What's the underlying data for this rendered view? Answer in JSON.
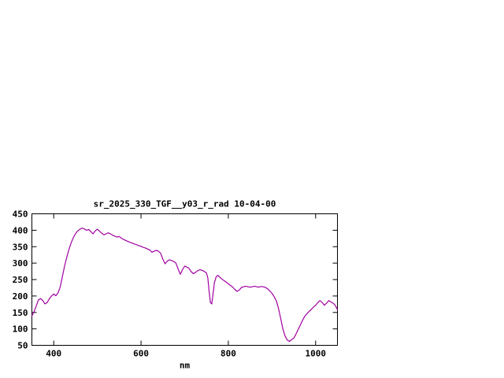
{
  "window": {
    "background_color": "#ffffff",
    "text_color": "#000000"
  },
  "chart_data": {
    "type": "line",
    "title": "sr_2025_330_TGF__y03_r_rad 10-04-00",
    "xlabel": "nm",
    "ylabel": "",
    "xlim": [
      350,
      1050
    ],
    "ylim": [
      50,
      450
    ],
    "xticks": [
      400,
      600,
      800,
      1000
    ],
    "yticks": [
      50,
      100,
      150,
      200,
      250,
      300,
      350,
      400,
      450
    ],
    "grid": false,
    "legend_position": "none",
    "line_color": "#A000A0",
    "series": [
      {
        "name": "sr_2025_330_TGF__y03_r_rad",
        "x": [
          350,
          355,
          360,
          365,
          370,
          375,
          380,
          385,
          390,
          395,
          400,
          405,
          410,
          415,
          420,
          425,
          430,
          435,
          440,
          445,
          450,
          455,
          460,
          465,
          470,
          475,
          480,
          485,
          490,
          495,
          500,
          505,
          510,
          515,
          520,
          525,
          530,
          535,
          540,
          545,
          550,
          555,
          560,
          565,
          570,
          575,
          580,
          585,
          590,
          595,
          600,
          605,
          610,
          615,
          620,
          625,
          630,
          635,
          640,
          645,
          650,
          655,
          660,
          665,
          670,
          675,
          680,
          685,
          690,
          695,
          700,
          705,
          710,
          715,
          720,
          725,
          730,
          735,
          740,
          745,
          750,
          753,
          756,
          759,
          762,
          765,
          768,
          772,
          776,
          780,
          785,
          790,
          795,
          800,
          805,
          810,
          815,
          820,
          825,
          830,
          835,
          840,
          845,
          850,
          855,
          860,
          865,
          870,
          875,
          880,
          885,
          890,
          895,
          900,
          905,
          910,
          915,
          920,
          925,
          930,
          935,
          940,
          945,
          950,
          955,
          960,
          965,
          970,
          975,
          980,
          985,
          990,
          995,
          1000,
          1005,
          1010,
          1015,
          1020,
          1025,
          1030,
          1035,
          1040,
          1045,
          1050
        ],
        "y": [
          140,
          152,
          170,
          188,
          192,
          186,
          176,
          180,
          192,
          200,
          206,
          201,
          210,
          228,
          260,
          292,
          318,
          342,
          362,
          378,
          390,
          398,
          403,
          407,
          404,
          400,
          402,
          396,
          389,
          398,
          403,
          397,
          391,
          386,
          389,
          392,
          389,
          385,
          382,
          379,
          381,
          376,
          372,
          369,
          366,
          363,
          361,
          358,
          356,
          353,
          351,
          348,
          346,
          343,
          340,
          333,
          336,
          339,
          336,
          330,
          312,
          298,
          306,
          310,
          308,
          305,
          300,
          282,
          266,
          280,
          291,
          288,
          284,
          274,
          268,
          272,
          277,
          280,
          278,
          275,
          270,
          255,
          215,
          180,
          176,
          205,
          240,
          258,
          263,
          258,
          252,
          247,
          242,
          237,
          232,
          227,
          220,
          214,
          218,
          226,
          228,
          230,
          228,
          227,
          228,
          230,
          228,
          227,
          229,
          228,
          226,
          222,
          215,
          208,
          198,
          185,
          162,
          132,
          100,
          78,
          66,
          62,
          67,
          72,
          84,
          98,
          112,
          126,
          138,
          146,
          153,
          159,
          166,
          172,
          180,
          186,
          180,
          172,
          178,
          186,
          182,
          178,
          172,
          158
        ]
      }
    ]
  }
}
